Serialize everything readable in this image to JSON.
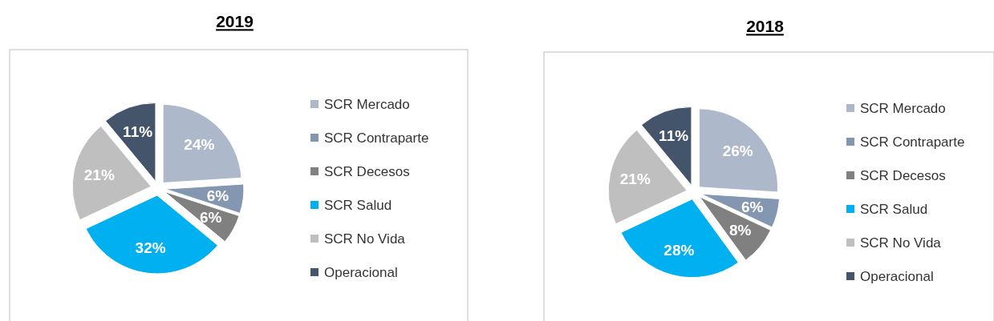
{
  "chart_data": [
    {
      "type": "pie",
      "title": "2019",
      "categories": [
        "SCR Mercado",
        "SCR Contraparte",
        "SCR Decesos",
        "SCR Salud",
        "SCR No Vida",
        "Operacional"
      ],
      "values": [
        24,
        6,
        6,
        32,
        21,
        11
      ],
      "value_labels": [
        "24%",
        "6%",
        "6%",
        "32%",
        "21%",
        "11%"
      ],
      "colors": [
        "#adb9ca",
        "#8497b0",
        "#808080",
        "#00b0f0",
        "#bfbfbf",
        "#44546a"
      ],
      "legend": "right"
    },
    {
      "type": "pie",
      "title": "2018",
      "categories": [
        "SCR Mercado",
        "SCR Contraparte",
        "SCR Decesos",
        "SCR Salud",
        "SCR No Vida",
        "Operacional"
      ],
      "values": [
        26,
        6,
        8,
        28,
        21,
        11
      ],
      "value_labels": [
        "26%",
        "6%",
        "8%",
        "28%",
        "21%",
        "11%"
      ],
      "colors": [
        "#adb9ca",
        "#8497b0",
        "#808080",
        "#00b0f0",
        "#bfbfbf",
        "#44546a"
      ],
      "legend": "right"
    }
  ]
}
